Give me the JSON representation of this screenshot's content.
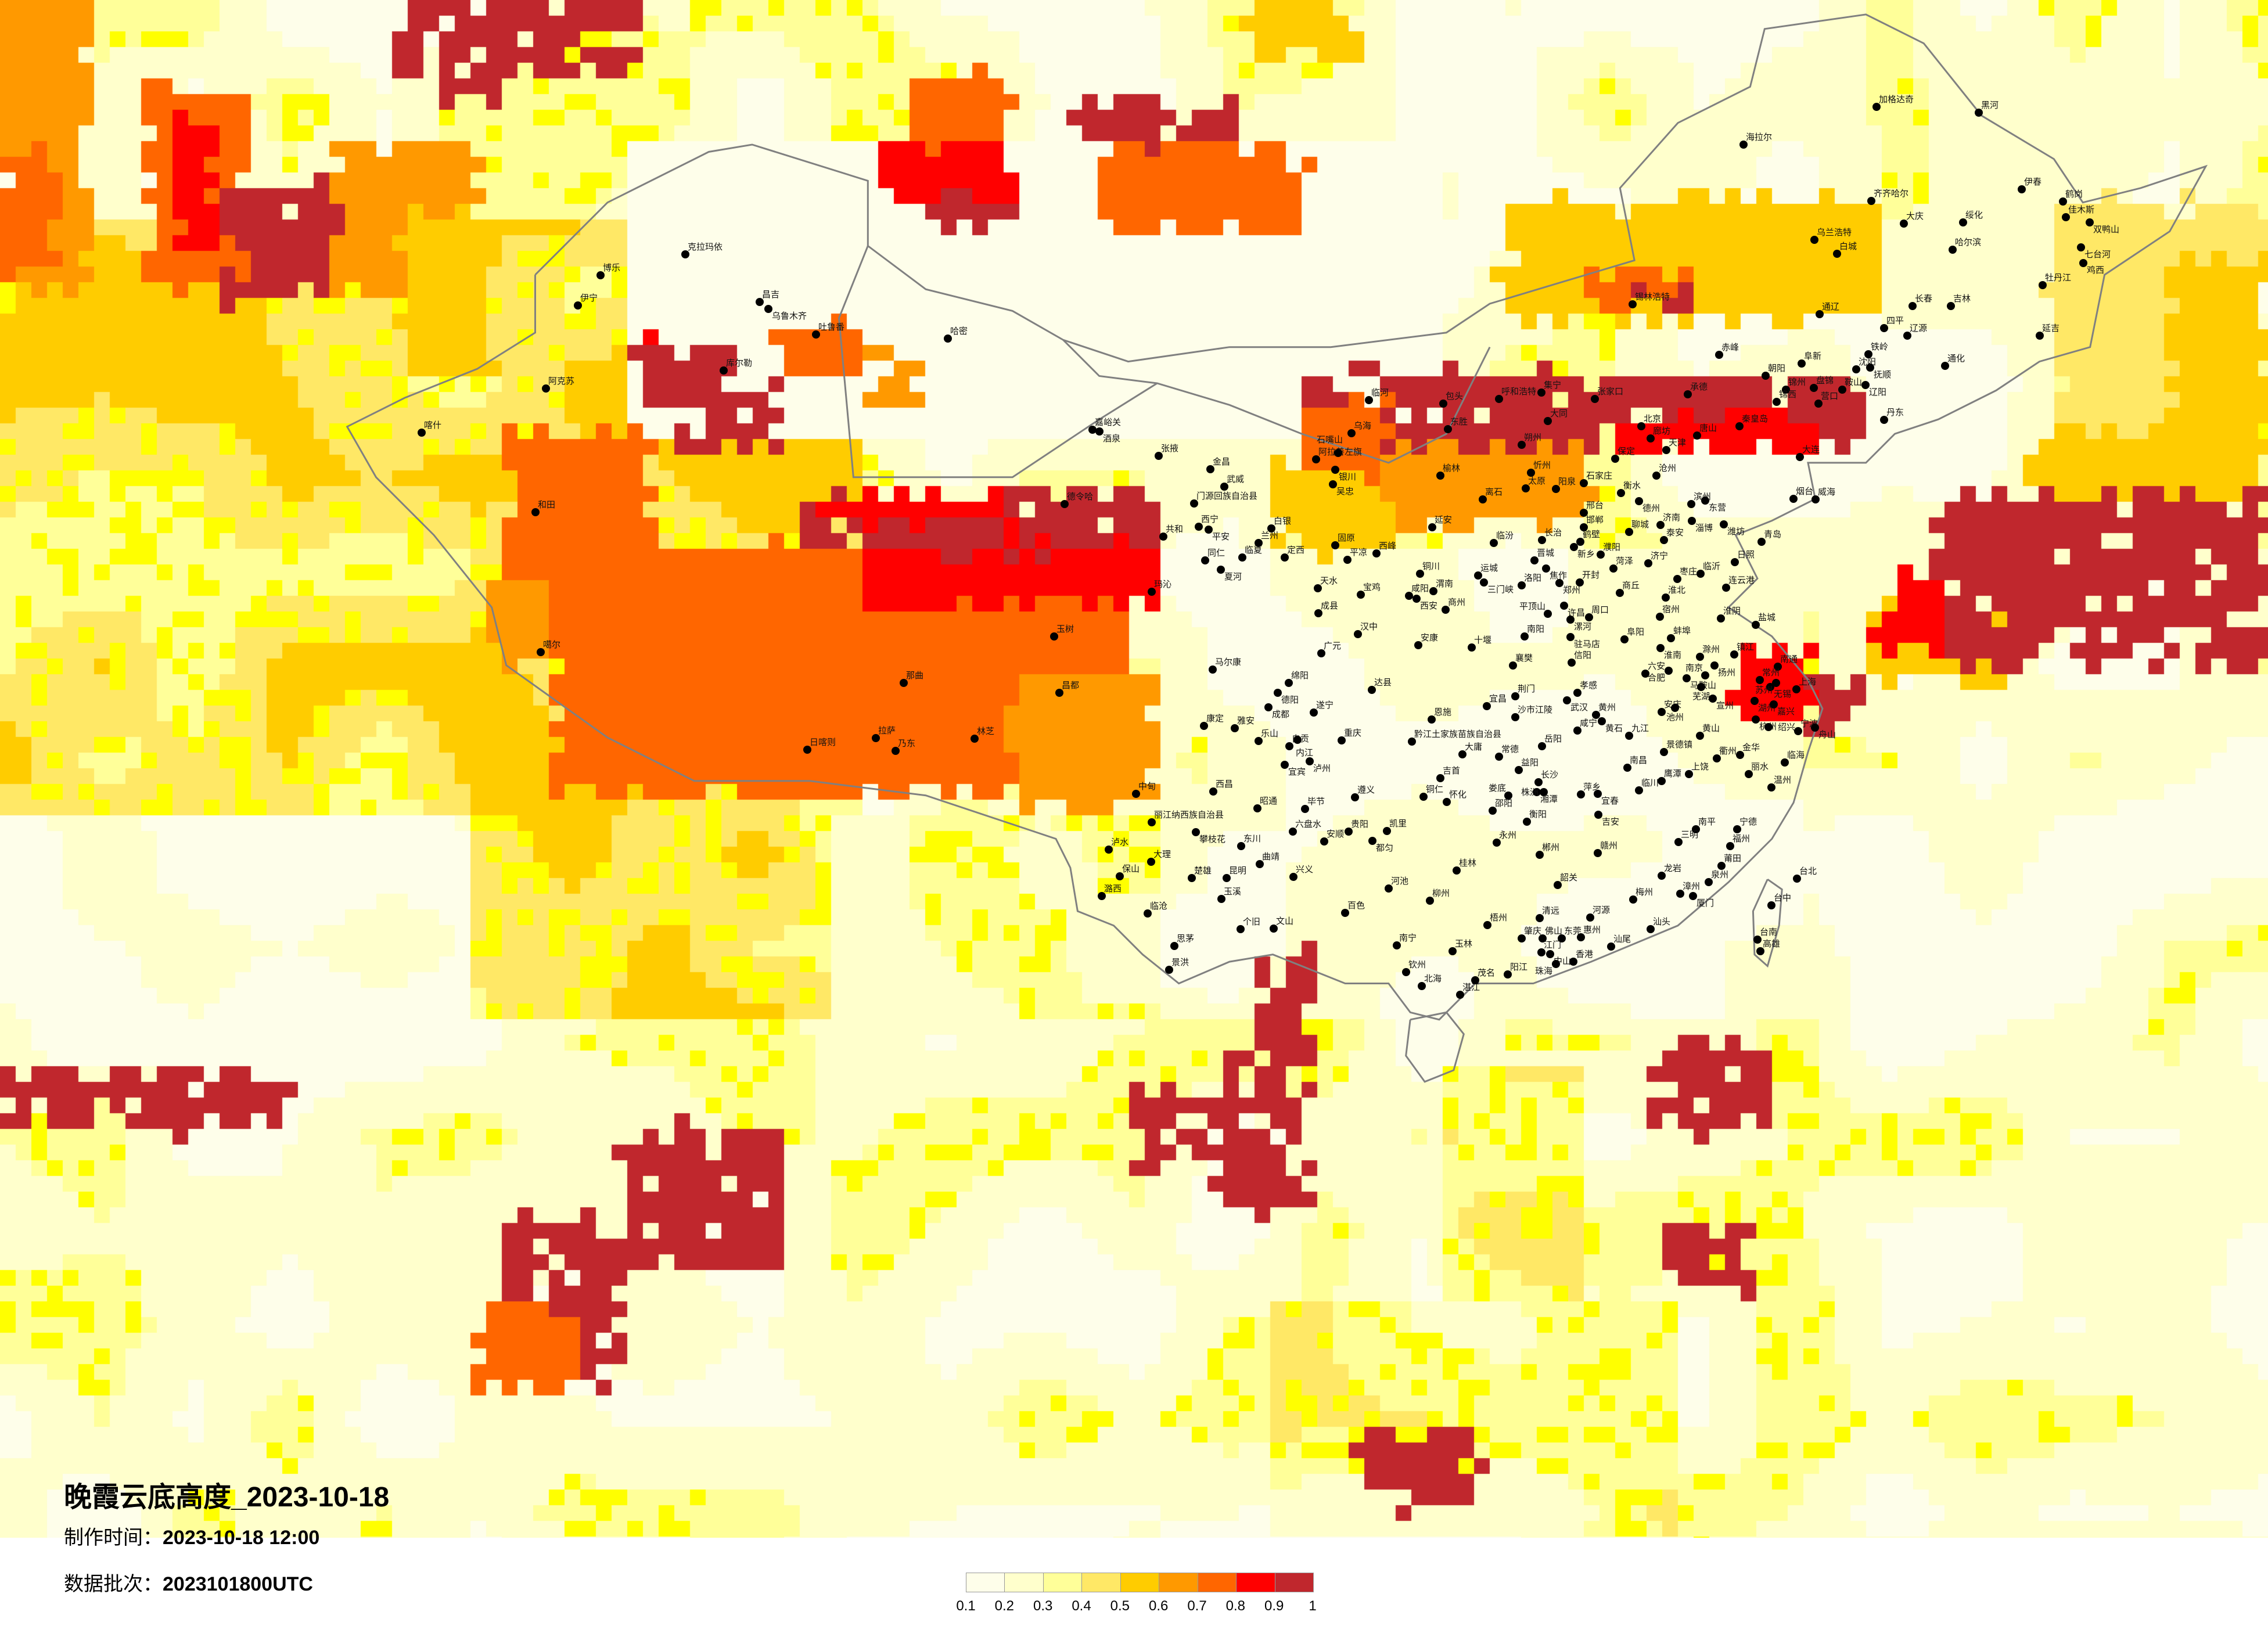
{
  "title": "晚霞云底高度_2023-10-18",
  "production_time": {
    "label": "制作时间：",
    "value": "2023-10-18 12:00"
  },
  "data_batch": {
    "label": "数据批次：",
    "value": "2023101800UTC"
  },
  "legend": {
    "ticks": [
      "0.1",
      "0.2",
      "0.3",
      "0.4",
      "0.5",
      "0.6",
      "0.7",
      "0.8",
      "0.9",
      "1"
    ],
    "colors": [
      "#fefeea",
      "#ffffcc",
      "#ffff99",
      "#ffe866",
      "#ffcc00",
      "#ff9900",
      "#ff6600",
      "#ff0000",
      "#c0272d"
    ]
  },
  "map_colors": {
    "bright_yellow": "#ffff00",
    "border": "#808080",
    "city_dot": "#000000"
  },
  "cities": [
    "克拉玛依",
    "博乐",
    "伊宁",
    "昌吉",
    "乌鲁木齐",
    "吐鲁番",
    "哈密",
    "库尔勒",
    "阿克苏",
    "喀什",
    "和田",
    "噶尔",
    "那曲",
    "拉萨",
    "日喀则",
    "乃东",
    "林芝",
    "玉树",
    "昌都",
    "嘉峪关",
    "酒泉",
    "张掖",
    "金昌",
    "武威",
    "德令哈",
    "门源回族自治县",
    "阿拉善左旗",
    "西宁",
    "平安",
    "共和",
    "白银",
    "兰州",
    "临夏",
    "同仁",
    "夏河",
    "定西",
    "玛沁",
    "天水",
    "成县",
    "广元",
    "马尔康",
    "绵阳",
    "德阳",
    "成都",
    "遂宁",
    "康定",
    "雅安",
    "乐山",
    "自贡",
    "内江",
    "宜宾",
    "泸州",
    "银川",
    "吴忠",
    "石嘴山",
    "乌海",
    "固原",
    "平凉",
    "西峰",
    "宝鸡",
    "汉中",
    "中甸",
    "西昌",
    "昭通",
    "丽江纳西族自治县",
    "攀枝花",
    "泸水",
    "东川",
    "大理",
    "曲靖",
    "保山",
    "楚雄",
    "昆明",
    "潞西",
    "玉溪",
    "临沧",
    "个旧",
    "文山",
    "思茅",
    "景洪",
    "遵义",
    "毕节",
    "六盘水",
    "安顺",
    "贵阳",
    "凯里",
    "都匀",
    "兴义",
    "河池",
    "百色",
    "南宁",
    "钦州",
    "临河",
    "包头",
    "呼和浩特",
    "集宁",
    "张家口",
    "承德",
    "大同",
    "北京",
    "廊坊",
    "唐山",
    "天津",
    "秦皇岛",
    "东胜",
    "朔州",
    "保定",
    "榆林",
    "忻州",
    "石家庄",
    "太原",
    "阳泉",
    "沧州",
    "衡水",
    "德州",
    "离石",
    "滨州",
    "东营",
    "邢台",
    "邯郸",
    "淄博",
    "潍坊",
    "烟台",
    "威海",
    "延安",
    "聊城",
    "济南",
    "泰安",
    "青岛",
    "临汾",
    "长治",
    "鹤壁",
    "濮阳",
    "晋城",
    "新乡",
    "焦作",
    "菏泽",
    "济宁",
    "日照",
    "临沂",
    "枣庄",
    "连云港",
    "铜川",
    "运城",
    "三门峡",
    "洛阳",
    "郑州",
    "开封",
    "商丘",
    "咸阳",
    "西安",
    "渭南",
    "许昌",
    "平顶山",
    "漯河",
    "周口",
    "淮北",
    "宿州",
    "商州",
    "淮阴",
    "盐城",
    "安康",
    "十堰",
    "南阳",
    "驻马店",
    "阜阳",
    "蚌埠",
    "淮南",
    "滁州",
    "镇江",
    "扬州",
    "南通",
    "南京",
    "常州",
    "无锡",
    "苏州",
    "上海",
    "六安",
    "合肥",
    "马鞍山",
    "芜湖",
    "宣州",
    "湖州",
    "嘉兴",
    "杭州",
    "绍兴",
    "宁波",
    "舟山",
    "阜新",
    "朝阳",
    "沈阳",
    "抚顺",
    "辽阳",
    "鞍山",
    "锦州",
    "盘锦",
    "锦西",
    "营口",
    "丹东",
    "大连",
    "信阳",
    "襄樊",
    "达县",
    "宜昌",
    "荆门",
    "孝感",
    "武汉",
    "沙市江陵",
    "恩施",
    "重庆",
    "黄州",
    "黄石",
    "咸宁",
    "九江",
    "岳阳",
    "安庆",
    "池州",
    "黄山",
    "黔江土家族苗族自治县",
    "大庸",
    "常德",
    "益阳",
    "吉首",
    "长沙",
    "湘潭",
    "株洲",
    "萍乡",
    "宜春",
    "娄底",
    "铜仁",
    "怀化",
    "邵阳",
    "衡阳",
    "吉安",
    "南昌",
    "景德镇",
    "鹰潭",
    "上饶",
    "临川",
    "衢州",
    "金华",
    "丽水",
    "临海",
    "温州",
    "永州",
    "郴州",
    "赣州",
    "南平",
    "宁德",
    "三明",
    "福州",
    "莆田",
    "泉州",
    "龙岩",
    "漳州",
    "厦门",
    "台北",
    "台中",
    "台南",
    "高雄",
    "桂林",
    "韶关",
    "柳州",
    "梅州",
    "清远",
    "河源",
    "汕头",
    "梧州",
    "肇庆",
    "佛山",
    "东莞",
    "惠州",
    "汕尾",
    "玉林",
    "江门",
    "中山",
    "香港",
    "珠海",
    "北海",
    "茂名",
    "阳江",
    "湛江",
    "加格达奇",
    "黑河",
    "海拉尔",
    "伊春",
    "齐齐哈尔",
    "鹤岗",
    "佳木斯",
    "双鸭山",
    "大庆",
    "绥化",
    "乌兰浩特",
    "白城",
    "哈尔滨",
    "七台河",
    "鸡西",
    "牡丹江",
    "锡林浩特",
    "长春",
    "吉林",
    "通辽",
    "四平",
    "辽源",
    "延吉",
    "赤峰",
    "铁岭",
    "通化"
  ]
}
